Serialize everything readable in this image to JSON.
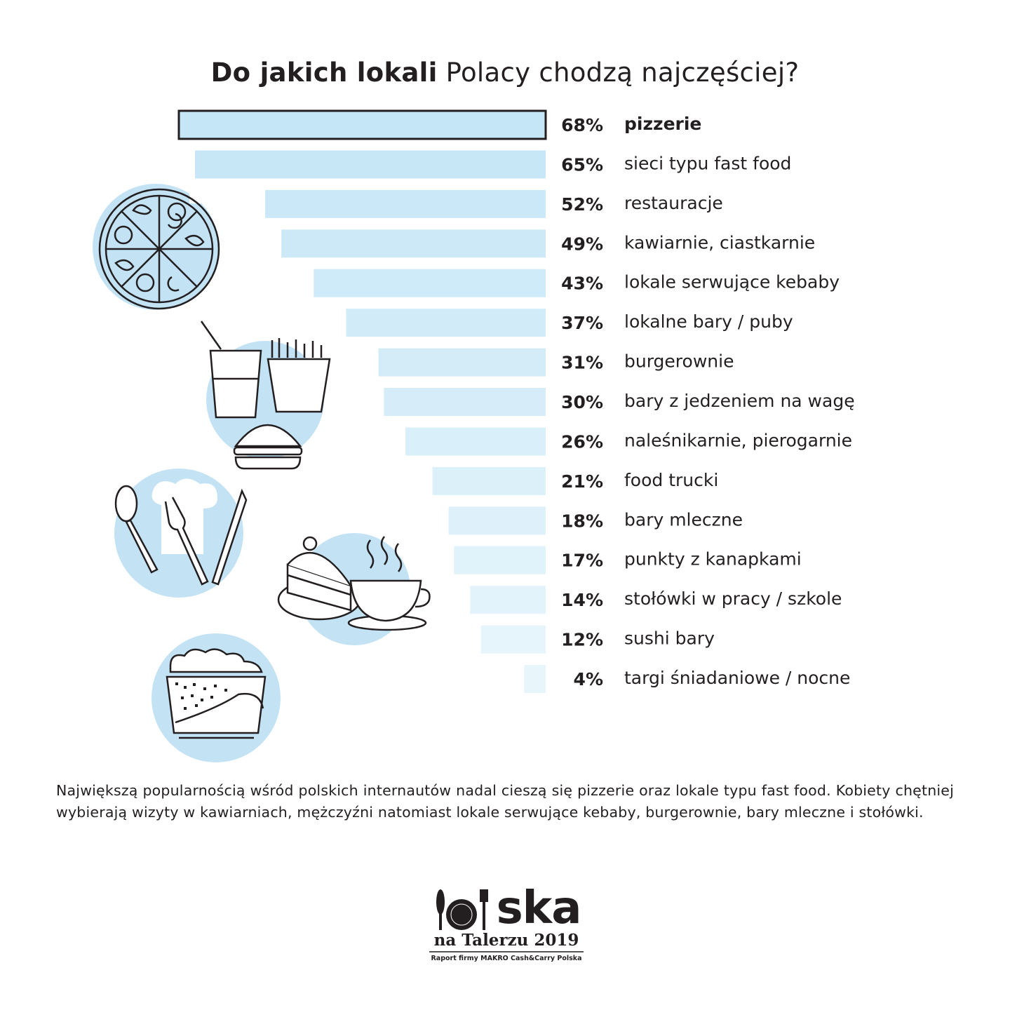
{
  "chart_data": {
    "type": "bar",
    "orientation": "horizontal",
    "title_bold": "Do jakich lokali",
    "title_rest": " Polacy chodzą najczęściej?",
    "categories": [
      "pizzerie",
      "sieci typu fast food",
      "restauracje",
      "kawiarnie, ciastkarnie",
      "lokale serwujące kebaby",
      "lokalne bary / puby",
      "burgerownie",
      "bary z jedzeniem na wagę",
      "naleśnikarnie, pierogarnie",
      "food trucki",
      "bary mleczne",
      "punkty z kanapkami",
      "stołówki w pracy / szkole",
      "sushi bary",
      "targi śniadaniowe / nocne"
    ],
    "values": [
      68,
      65,
      52,
      49,
      43,
      37,
      31,
      30,
      26,
      21,
      18,
      17,
      14,
      12,
      4
    ],
    "unit": "%",
    "highlighted": "pizzerie",
    "bar_color": "#c5e6f6",
    "xlim": [
      0,
      68
    ]
  },
  "note": "Największą popularnością wśród polskich internautów nadal cieszą się pizzerie oraz lokale typu fast food. Kobiety chętniej wybierają wizyty w kawiarniach, mężczyźni natomiast lokale serwujące kebaby, burgerownie, bary mleczne i stołówki.",
  "logo": {
    "main": "Polska",
    "sub": "na Talerzu 2019",
    "source": "Raport firmy MAKRO Cash&Carry Polska"
  },
  "icons": [
    "pizza-icon",
    "drink-fries-burger-icon",
    "cutlery-chef-hat-icon",
    "cake-coffee-icon",
    "salad-bowl-icon"
  ]
}
